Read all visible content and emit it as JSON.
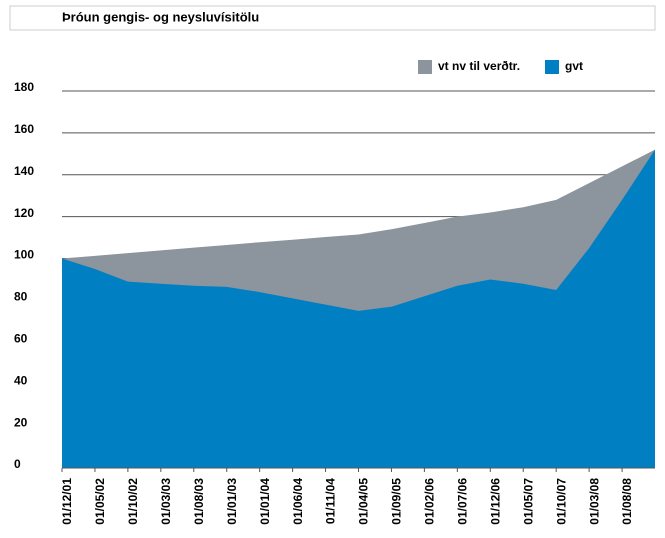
{
  "chart_data": {
    "type": "area",
    "title": "Þróun gengis- og neysluvísitölu",
    "categories": [
      "01/12/01",
      "01/05/02",
      "01/10/02",
      "01/03/03",
      "01/08/03",
      "01/01/03",
      "01/01/04",
      "01/06/04",
      "01/11/04",
      "01/04/05",
      "01/09/05",
      "01/02/06",
      "01/07/06",
      "01/12/06",
      "01/05/07",
      "01/10/07",
      "01/03/08",
      "01/08/08",
      null
    ],
    "series": [
      {
        "name": "vt nv til verðtr.",
        "color": "#8c959d",
        "values": [
          100,
          101.3,
          102.6,
          103.9,
          105.2,
          106.5,
          107.8,
          109,
          110.3,
          111.5,
          114,
          117,
          120,
          122,
          124.5,
          128,
          136,
          144,
          152
        ]
      },
      {
        "name": "gvt",
        "color": "#0080c3",
        "values": [
          100,
          95,
          89,
          88,
          87,
          86.5,
          84,
          81,
          78,
          75,
          77,
          82,
          87,
          90,
          88,
          85,
          105,
          128,
          152
        ]
      }
    ],
    "ylim": [
      0,
      180
    ],
    "yticks": [
      0,
      20,
      40,
      60,
      80,
      100,
      120,
      140,
      160,
      180
    ],
    "grid": true,
    "legend": "top-right"
  }
}
